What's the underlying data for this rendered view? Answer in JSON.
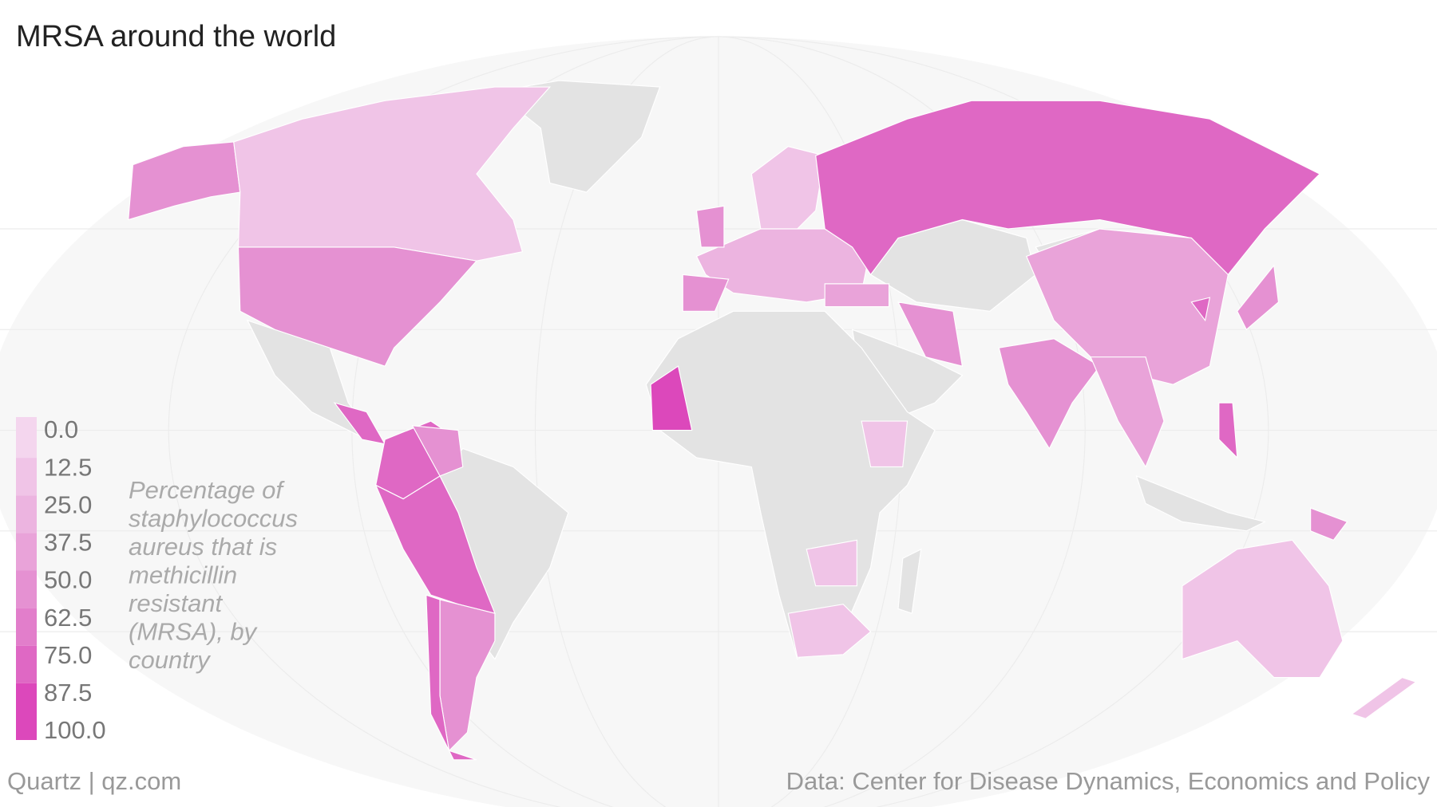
{
  "title": "MRSA around the world",
  "legend": {
    "ticks": [
      {
        "value": 0,
        "label": "0.0"
      },
      {
        "value": 12.5,
        "label": "12.5"
      },
      {
        "value": 25,
        "label": "25.0"
      },
      {
        "value": 37.5,
        "label": "37.5"
      },
      {
        "value": 50,
        "label": "50.0"
      },
      {
        "value": 62.5,
        "label": "62.5"
      },
      {
        "value": 75,
        "label": "75.0"
      },
      {
        "value": 87.5,
        "label": "87.5"
      },
      {
        "value": 100,
        "label": "100.0"
      }
    ],
    "colors": [
      "#f4d6ee",
      "#f0c4e7",
      "#ecb4e0",
      "#e9a3d9",
      "#e591d2",
      "#e27ecb",
      "#df68c4",
      "#dc48bb"
    ],
    "caption": [
      "Percentage of",
      "staphylococcus",
      "aureus that is",
      "methicillin",
      "resistant",
      "(MRSA), by",
      "country"
    ]
  },
  "credit": "Quartz | qz.com",
  "source": "Data: Center for Disease Dynamics, Economics and Policy"
}
